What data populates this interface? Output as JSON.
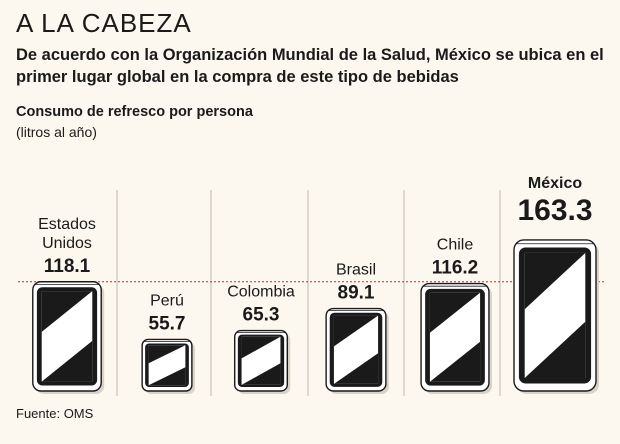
{
  "header": {
    "title": "A LA CABEZA",
    "subtitle": "De acuerdo con la Organización Mundial de la Salud, México se ubica en el primer lugar global en la compra de este tipo de bebidas"
  },
  "measure": "Consumo de refresco por persona",
  "unit": "(litros al año)",
  "source": "Fuente: OMS",
  "colors": {
    "background": "#fdf8ef",
    "highlight": "#d7262e",
    "stripe": "#c9c3b8",
    "reference_line": "#d7262e",
    "can_dark": "#1a1a1a"
  },
  "chart_data": {
    "type": "bar",
    "title": "A LA CABEZA",
    "ylabel": "Consumo de refresco por persona (litros al año)",
    "categories": [
      "Estados Unidos",
      "Perú",
      "Colombia",
      "Brasil",
      "Chile",
      "México"
    ],
    "label_lines": [
      [
        "Estados",
        "Unidos"
      ],
      [
        "Perú"
      ],
      [
        "Colombia"
      ],
      [
        "Brasil"
      ],
      [
        "Chile"
      ],
      [
        "México"
      ]
    ],
    "values": [
      118.1,
      55.7,
      65.3,
      89.1,
      116.2,
      163.3
    ],
    "value_labels": [
      "118.1",
      "55.7",
      "65.3",
      "89.1",
      "116.2",
      "163.3"
    ],
    "highlight": "México",
    "reference_line_at": 118.1
  }
}
